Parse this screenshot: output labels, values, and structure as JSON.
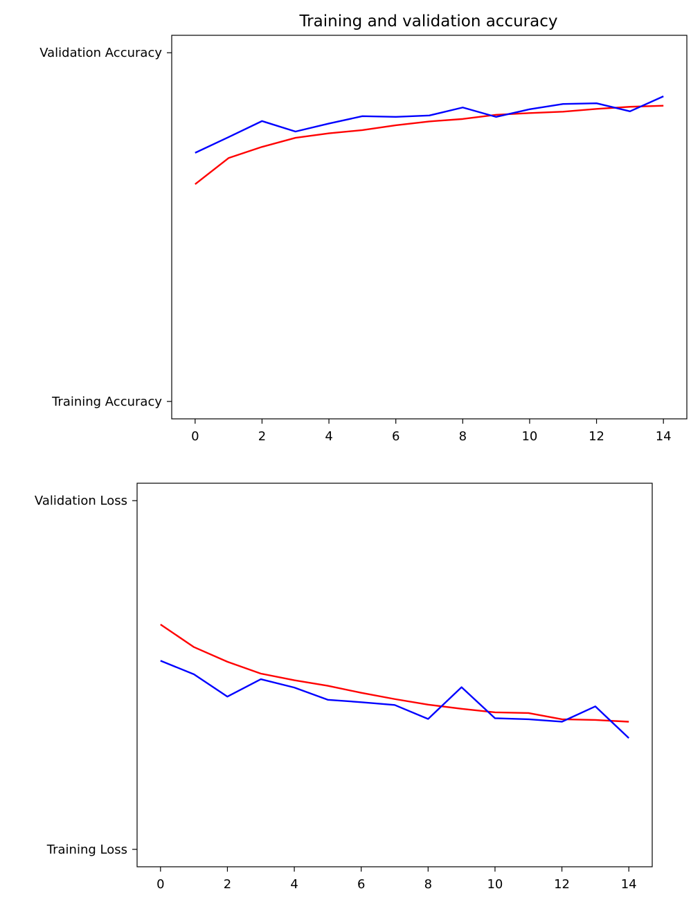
{
  "chart_data": [
    {
      "type": "line",
      "title": "Training and validation accuracy",
      "xlabel": "",
      "ylabel": "",
      "x": [
        0,
        1,
        2,
        3,
        4,
        5,
        6,
        7,
        8,
        9,
        10,
        11,
        12,
        13,
        14
      ],
      "xlim": [
        -0.7,
        14.7
      ],
      "xticks": [
        0,
        2,
        4,
        6,
        8,
        10,
        12,
        14
      ],
      "xtick_labels": [
        "0",
        "2",
        "4",
        "6",
        "8",
        "10",
        "12",
        "14"
      ],
      "y_scale": "categorical",
      "yticks": [
        {
          "label": "Training Accuracy",
          "value": 0
        },
        {
          "label": "Validation Accuracy",
          "value": 1
        }
      ],
      "ylim": [
        -0.05,
        1.05
      ],
      "grid": false,
      "series": [
        {
          "color": "#ff0000",
          "values": [
            0.623,
            0.698,
            0.73,
            0.756,
            0.769,
            0.778,
            0.792,
            0.803,
            0.81,
            0.822,
            0.827,
            0.831,
            0.839,
            0.845,
            0.848
          ]
        },
        {
          "color": "#0000ff",
          "values": [
            0.713,
            0.758,
            0.804,
            0.774,
            0.797,
            0.818,
            0.816,
            0.82,
            0.843,
            0.816,
            0.838,
            0.853,
            0.855,
            0.832,
            0.875
          ]
        }
      ]
    },
    {
      "type": "line",
      "title": "",
      "xlabel": "",
      "ylabel": "",
      "x": [
        0,
        1,
        2,
        3,
        4,
        5,
        6,
        7,
        8,
        9,
        10,
        11,
        12,
        13,
        14
      ],
      "xlim": [
        -0.7,
        14.7
      ],
      "xticks": [
        0,
        2,
        4,
        6,
        8,
        10,
        12,
        14
      ],
      "xtick_labels": [
        "0",
        "2",
        "4",
        "6",
        "8",
        "10",
        "12",
        "14"
      ],
      "y_scale": "categorical",
      "yticks": [
        {
          "label": "Training Loss",
          "value": 0
        },
        {
          "label": "Validation Loss",
          "value": 1
        }
      ],
      "ylim": [
        -0.05,
        1.05
      ],
      "grid": false,
      "series": [
        {
          "color": "#ff0000",
          "values": [
            0.645,
            0.58,
            0.538,
            0.504,
            0.485,
            0.469,
            0.449,
            0.431,
            0.415,
            0.403,
            0.393,
            0.391,
            0.373,
            0.371,
            0.366
          ]
        },
        {
          "color": "#0000ff",
          "values": [
            0.541,
            0.502,
            0.438,
            0.488,
            0.464,
            0.429,
            0.422,
            0.414,
            0.374,
            0.465,
            0.376,
            0.373,
            0.366,
            0.41,
            0.319
          ]
        }
      ]
    }
  ]
}
